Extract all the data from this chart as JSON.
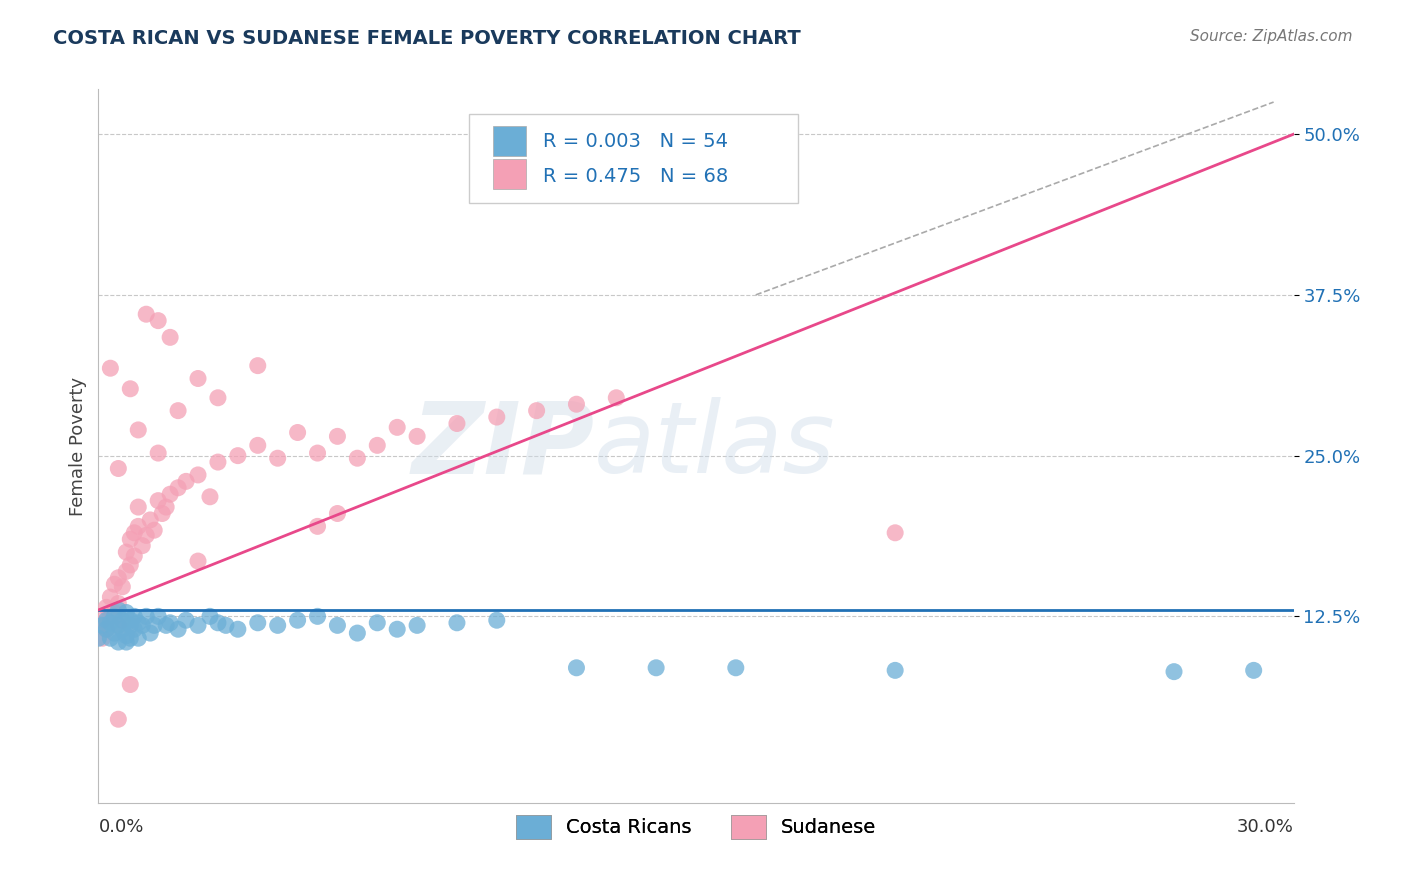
{
  "title": "COSTA RICAN VS SUDANESE FEMALE POVERTY CORRELATION CHART",
  "source_text": "Source: ZipAtlas.com",
  "ylabel": "Female Poverty",
  "yticks": [
    0.125,
    0.25,
    0.375,
    0.5
  ],
  "ytick_labels": [
    "12.5%",
    "25.0%",
    "37.5%",
    "50.0%"
  ],
  "xmin": 0.0,
  "xmax": 0.3,
  "ymin": -0.02,
  "ymax": 0.535,
  "watermark": "ZIPatlas",
  "legend_bottom_labels": [
    "Costa Ricans",
    "Sudanese"
  ],
  "blue_color": "#6baed6",
  "pink_color": "#f4a0b5",
  "blue_line_color": "#2171b5",
  "pink_line_color": "#e8488a",
  "grid_color": "#c8c8c8",
  "background_color": "#ffffff",
  "title_color": "#1a3a5c",
  "source_color": "#777777",
  "blue_scatter_x": [
    0.0,
    0.001,
    0.002,
    0.002,
    0.003,
    0.003,
    0.004,
    0.004,
    0.005,
    0.005,
    0.005,
    0.006,
    0.006,
    0.007,
    0.007,
    0.007,
    0.008,
    0.008,
    0.008,
    0.009,
    0.009,
    0.01,
    0.01,
    0.011,
    0.012,
    0.013,
    0.014,
    0.015,
    0.017,
    0.018,
    0.02,
    0.022,
    0.025,
    0.028,
    0.03,
    0.032,
    0.035,
    0.04,
    0.045,
    0.05,
    0.055,
    0.06,
    0.065,
    0.07,
    0.075,
    0.08,
    0.09,
    0.1,
    0.12,
    0.14,
    0.16,
    0.2,
    0.27,
    0.29
  ],
  "blue_scatter_y": [
    0.108,
    0.118,
    0.122,
    0.115,
    0.108,
    0.12,
    0.125,
    0.112,
    0.118,
    0.105,
    0.13,
    0.122,
    0.115,
    0.11,
    0.128,
    0.105,
    0.118,
    0.122,
    0.108,
    0.125,
    0.115,
    0.12,
    0.108,
    0.118,
    0.125,
    0.112,
    0.118,
    0.125,
    0.118,
    0.12,
    0.115,
    0.122,
    0.118,
    0.125,
    0.12,
    0.118,
    0.115,
    0.12,
    0.118,
    0.122,
    0.125,
    0.118,
    0.112,
    0.12,
    0.115,
    0.118,
    0.12,
    0.122,
    0.085,
    0.085,
    0.085,
    0.083,
    0.082,
    0.083
  ],
  "pink_scatter_x": [
    0.0,
    0.001,
    0.001,
    0.002,
    0.002,
    0.003,
    0.003,
    0.004,
    0.004,
    0.005,
    0.005,
    0.005,
    0.006,
    0.006,
    0.007,
    0.007,
    0.008,
    0.008,
    0.009,
    0.009,
    0.01,
    0.01,
    0.011,
    0.012,
    0.013,
    0.014,
    0.015,
    0.016,
    0.017,
    0.018,
    0.02,
    0.022,
    0.025,
    0.028,
    0.03,
    0.035,
    0.04,
    0.045,
    0.05,
    0.055,
    0.06,
    0.065,
    0.07,
    0.075,
    0.08,
    0.09,
    0.1,
    0.11,
    0.12,
    0.13,
    0.005,
    0.01,
    0.015,
    0.02,
    0.025,
    0.03,
    0.04,
    0.055,
    0.003,
    0.008,
    0.012,
    0.018,
    0.06,
    0.025,
    0.015,
    0.005,
    0.008,
    0.2
  ],
  "pink_scatter_y": [
    0.118,
    0.122,
    0.108,
    0.132,
    0.115,
    0.125,
    0.14,
    0.128,
    0.15,
    0.118,
    0.135,
    0.155,
    0.122,
    0.148,
    0.16,
    0.175,
    0.165,
    0.185,
    0.172,
    0.19,
    0.195,
    0.21,
    0.18,
    0.188,
    0.2,
    0.192,
    0.215,
    0.205,
    0.21,
    0.22,
    0.225,
    0.23,
    0.235,
    0.218,
    0.245,
    0.25,
    0.258,
    0.248,
    0.268,
    0.252,
    0.265,
    0.248,
    0.258,
    0.272,
    0.265,
    0.275,
    0.28,
    0.285,
    0.29,
    0.295,
    0.24,
    0.27,
    0.252,
    0.285,
    0.31,
    0.295,
    0.32,
    0.195,
    0.318,
    0.302,
    0.36,
    0.342,
    0.205,
    0.168,
    0.355,
    0.045,
    0.072,
    0.19
  ],
  "blue_line_y0": 0.13,
  "blue_line_y1": 0.13,
  "pink_line_x0": 0.0,
  "pink_line_x1": 0.3,
  "pink_line_y0": 0.13,
  "pink_line_y1": 0.5,
  "ref_line_x0": 0.165,
  "ref_line_y0": 0.375,
  "ref_line_x1": 0.295,
  "ref_line_y1": 0.525
}
